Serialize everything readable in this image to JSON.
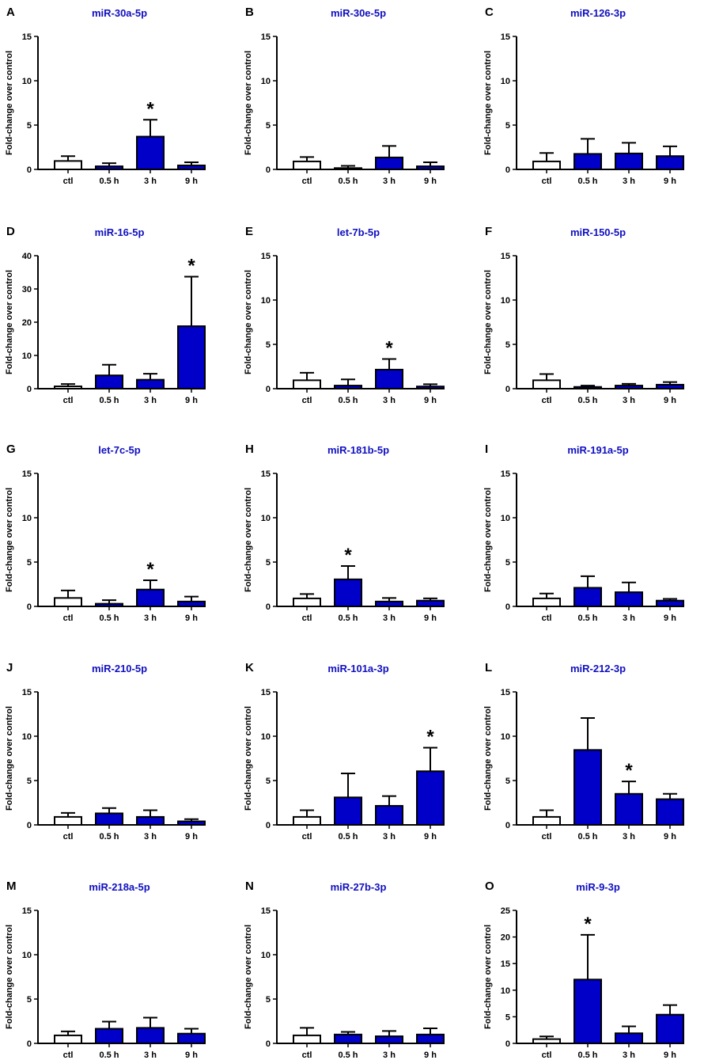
{
  "colors": {
    "bar_fill": "#0000c8",
    "control_fill": "#ffffff",
    "title": "#1010c0",
    "axis": "#000000"
  },
  "chart_data": [
    {
      "type": "bar",
      "panel": "A",
      "title": "miR-30a-5p",
      "ylabel": "Fold-change over control",
      "categories": [
        "ctl",
        "0.5 h",
        "3 h",
        "9 h"
      ],
      "values": [
        0.95,
        0.35,
        3.7,
        0.45
      ],
      "errors": [
        0.55,
        0.35,
        1.9,
        0.35
      ],
      "significant": [
        false,
        false,
        true,
        false
      ],
      "ylim": [
        0,
        15
      ],
      "yticks": [
        0,
        5,
        10,
        15
      ]
    },
    {
      "type": "bar",
      "panel": "B",
      "title": "miR-30e-5p",
      "ylabel": "Fold-change over control",
      "categories": [
        "ctl",
        "0.5 h",
        "3 h",
        "9 h"
      ],
      "values": [
        0.9,
        0.15,
        1.35,
        0.35
      ],
      "errors": [
        0.5,
        0.25,
        1.3,
        0.45
      ],
      "significant": [
        false,
        false,
        false,
        false
      ],
      "ylim": [
        0,
        15
      ],
      "yticks": [
        0,
        5,
        10,
        15
      ]
    },
    {
      "type": "bar",
      "panel": "C",
      "title": "miR-126-3p",
      "ylabel": "Fold-change over control",
      "categories": [
        "ctl",
        "0.5 h",
        "3 h",
        "9 h"
      ],
      "values": [
        0.9,
        1.75,
        1.8,
        1.5
      ],
      "errors": [
        0.95,
        1.7,
        1.2,
        1.1
      ],
      "significant": [
        false,
        false,
        false,
        false
      ],
      "ylim": [
        0,
        15
      ],
      "yticks": [
        0,
        5,
        10,
        15
      ]
    },
    {
      "type": "bar",
      "panel": "D",
      "title": "miR-16-5p",
      "ylabel": "Fold-change over control",
      "categories": [
        "ctl",
        "0.5 h",
        "3 h",
        "9 h"
      ],
      "values": [
        0.7,
        4.0,
        2.7,
        18.8
      ],
      "errors": [
        0.7,
        3.2,
        1.8,
        14.9
      ],
      "significant": [
        false,
        false,
        false,
        true
      ],
      "ylim": [
        0,
        40
      ],
      "yticks": [
        0,
        10,
        20,
        30,
        40
      ]
    },
    {
      "type": "bar",
      "panel": "E",
      "title": "let-7b-5p",
      "ylabel": "Fold-change over control",
      "categories": [
        "ctl",
        "0.5 h",
        "3 h",
        "9 h"
      ],
      "values": [
        0.95,
        0.35,
        2.15,
        0.25
      ],
      "errors": [
        0.85,
        0.7,
        1.2,
        0.25
      ],
      "significant": [
        false,
        false,
        true,
        false
      ],
      "ylim": [
        0,
        15
      ],
      "yticks": [
        0,
        5,
        10,
        15
      ]
    },
    {
      "type": "bar",
      "panel": "F",
      "title": "miR-150-5p",
      "ylabel": "Fold-change over control",
      "categories": [
        "ctl",
        "0.5 h",
        "3 h",
        "9 h"
      ],
      "values": [
        0.95,
        0.2,
        0.35,
        0.45
      ],
      "errors": [
        0.7,
        0.15,
        0.2,
        0.3
      ],
      "significant": [
        false,
        false,
        false,
        false
      ],
      "ylim": [
        0,
        15
      ],
      "yticks": [
        0,
        5,
        10,
        15
      ]
    },
    {
      "type": "bar",
      "panel": "G",
      "title": "let-7c-5p",
      "ylabel": "Fold-change over control",
      "categories": [
        "ctl",
        "0.5 h",
        "3 h",
        "9 h"
      ],
      "values": [
        0.95,
        0.3,
        1.9,
        0.55
      ],
      "errors": [
        0.85,
        0.4,
        1.05,
        0.55
      ],
      "significant": [
        false,
        false,
        true,
        false
      ],
      "ylim": [
        0,
        15
      ],
      "yticks": [
        0,
        5,
        10,
        15
      ]
    },
    {
      "type": "bar",
      "panel": "H",
      "title": "miR-181b-5p",
      "ylabel": "Fold-change over control",
      "categories": [
        "ctl",
        "0.5 h",
        "3 h",
        "9 h"
      ],
      "values": [
        0.9,
        3.05,
        0.55,
        0.65
      ],
      "errors": [
        0.5,
        1.5,
        0.4,
        0.25
      ],
      "significant": [
        false,
        true,
        false,
        false
      ],
      "ylim": [
        0,
        15
      ],
      "yticks": [
        0,
        5,
        10,
        15
      ]
    },
    {
      "type": "bar",
      "panel": "I",
      "title": "miR-191a-5p",
      "ylabel": "Fold-change over control",
      "categories": [
        "ctl",
        "0.5 h",
        "3 h",
        "9 h"
      ],
      "values": [
        0.9,
        2.1,
        1.6,
        0.65
      ],
      "errors": [
        0.55,
        1.3,
        1.1,
        0.2
      ],
      "significant": [
        false,
        false,
        false,
        false
      ],
      "ylim": [
        0,
        15
      ],
      "yticks": [
        0,
        5,
        10,
        15
      ]
    },
    {
      "type": "bar",
      "panel": "J",
      "title": "miR-210-5p",
      "ylabel": "Fold-change over control",
      "categories": [
        "ctl",
        "0.5 h",
        "3 h",
        "9 h"
      ],
      "values": [
        0.9,
        1.3,
        0.9,
        0.4
      ],
      "errors": [
        0.45,
        0.6,
        0.75,
        0.25
      ],
      "significant": [
        false,
        false,
        false,
        false
      ],
      "ylim": [
        0,
        15
      ],
      "yticks": [
        0,
        5,
        10,
        15
      ]
    },
    {
      "type": "bar",
      "panel": "K",
      "title": "miR-101a-3p",
      "ylabel": "Fold-change over control",
      "categories": [
        "ctl",
        "0.5 h",
        "3 h",
        "9 h"
      ],
      "values": [
        0.9,
        3.1,
        2.15,
        6.05
      ],
      "errors": [
        0.75,
        2.7,
        1.1,
        2.65
      ],
      "significant": [
        false,
        false,
        false,
        true
      ],
      "ylim": [
        0,
        15
      ],
      "yticks": [
        0,
        5,
        10,
        15
      ]
    },
    {
      "type": "bar",
      "panel": "L",
      "title": "miR-212-3p",
      "ylabel": "Fold-change over control",
      "categories": [
        "ctl",
        "0.5 h",
        "3 h",
        "9 h"
      ],
      "values": [
        0.9,
        8.45,
        3.5,
        2.9
      ],
      "errors": [
        0.75,
        3.6,
        1.4,
        0.6
      ],
      "significant": [
        false,
        false,
        true,
        false
      ],
      "ylim": [
        0,
        15
      ],
      "yticks": [
        0,
        5,
        10,
        15
      ]
    },
    {
      "type": "bar",
      "panel": "M",
      "title": "miR-218a-5p",
      "ylabel": "Fold-change over control",
      "categories": [
        "ctl",
        "0.5 h",
        "3 h",
        "9 h"
      ],
      "values": [
        0.9,
        1.65,
        1.75,
        1.1
      ],
      "errors": [
        0.45,
        0.8,
        1.15,
        0.55
      ],
      "significant": [
        false,
        false,
        false,
        false
      ],
      "ylim": [
        0,
        15
      ],
      "yticks": [
        0,
        5,
        10,
        15
      ]
    },
    {
      "type": "bar",
      "panel": "N",
      "title": "miR-27b-3p",
      "ylabel": "Fold-change over control",
      "categories": [
        "ctl",
        "0.5 h",
        "3 h",
        "9 h"
      ],
      "values": [
        0.9,
        1.0,
        0.8,
        1.0
      ],
      "errors": [
        0.85,
        0.3,
        0.6,
        0.7
      ],
      "significant": [
        false,
        false,
        false,
        false
      ],
      "ylim": [
        0,
        15
      ],
      "yticks": [
        0,
        5,
        10,
        15
      ]
    },
    {
      "type": "bar",
      "panel": "O",
      "title": "miR-9-3p",
      "ylabel": "Fold-change over control",
      "categories": [
        "ctl",
        "0.5 h",
        "3 h",
        "9 h"
      ],
      "values": [
        0.8,
        12.0,
        1.9,
        5.4
      ],
      "errors": [
        0.5,
        8.4,
        1.3,
        1.8
      ],
      "significant": [
        false,
        true,
        false,
        false
      ],
      "ylim": [
        0,
        25
      ],
      "yticks": [
        0,
        5,
        10,
        15,
        20,
        25
      ]
    }
  ]
}
